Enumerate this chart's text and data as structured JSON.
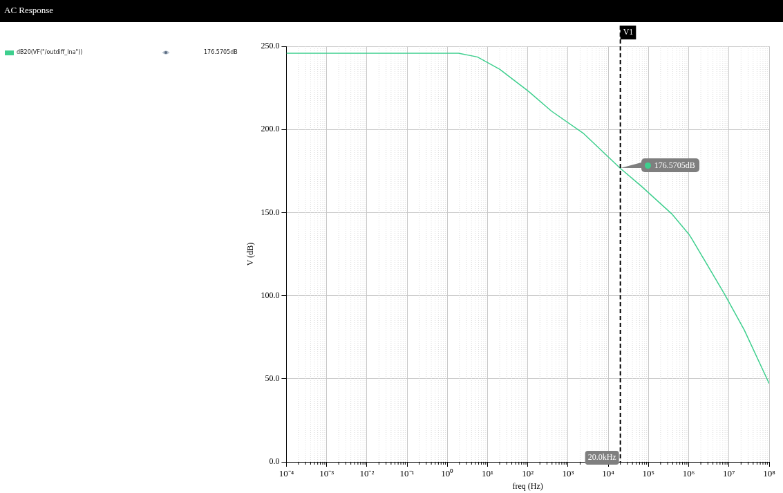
{
  "chart_data": {
    "type": "line",
    "title": "AC Response",
    "xlabel": "freq (Hz)",
    "ylabel": "V (dB)",
    "log": "x",
    "grid": true,
    "legend": "top left",
    "marker": "none",
    "line_style": "solid",
    "xlim": [
      0.0001,
      100000000
    ],
    "xticks": [
      {
        "value": 0.0001,
        "label": "10⁻⁴"
      },
      {
        "value": 0.001,
        "label": "10⁻³"
      },
      {
        "value": 0.01,
        "label": "10⁻²"
      },
      {
        "value": 0.1,
        "label": "10⁻¹"
      },
      {
        "value": 1,
        "label": "10⁰"
      },
      {
        "value": 10,
        "label": "10¹"
      },
      {
        "value": 100,
        "label": "10²"
      },
      {
        "value": 1000,
        "label": "10³"
      },
      {
        "value": 10000,
        "label": "10⁴"
      },
      {
        "value": 100000,
        "label": "10⁵"
      },
      {
        "value": 1000000,
        "label": "10⁶"
      },
      {
        "value": 10000000,
        "label": "10⁷"
      },
      {
        "value": 100000000,
        "label": "10⁸"
      }
    ],
    "ylim": [
      0,
      250
    ],
    "yticks": [
      {
        "value": 0,
        "label": "0.0"
      },
      {
        "value": 50,
        "label": "50.0"
      },
      {
        "value": 100,
        "label": "100.0"
      },
      {
        "value": 150,
        "label": "150.0"
      },
      {
        "value": 200,
        "label": "200.0"
      },
      {
        "value": 250,
        "label": "250.0"
      }
    ],
    "series": [
      {
        "name": "dB20(VF(\"/outdiff_lna\"))",
        "color": "#3ecf8e",
        "x": [
          0.0001,
          0.001,
          0.01,
          0.1,
          1,
          1.9,
          5.6,
          20,
          107,
          389,
          2450,
          20000,
          66000,
          380000,
          1050000,
          1260000,
          7900000,
          24000000,
          100000000
        ],
        "values": [
          245.8,
          245.8,
          245.8,
          245.8,
          245.8,
          245.8,
          243.6,
          236.2,
          222.7,
          211,
          197.5,
          176.6,
          165.9,
          149.2,
          136.4,
          133.3,
          100.6,
          79.4,
          47.1
        ]
      }
    ],
    "ref_lines": [
      {
        "axis": "x",
        "value": 20000,
        "label": "V1",
        "color": "#000000",
        "line_style": "dashed"
      }
    ],
    "annotations": [
      "176.5705dB",
      {
        "text": "20.0kHz",
        "x": 20000,
        "y": 0
      },
      "176.5705dB"
    ]
  }
}
